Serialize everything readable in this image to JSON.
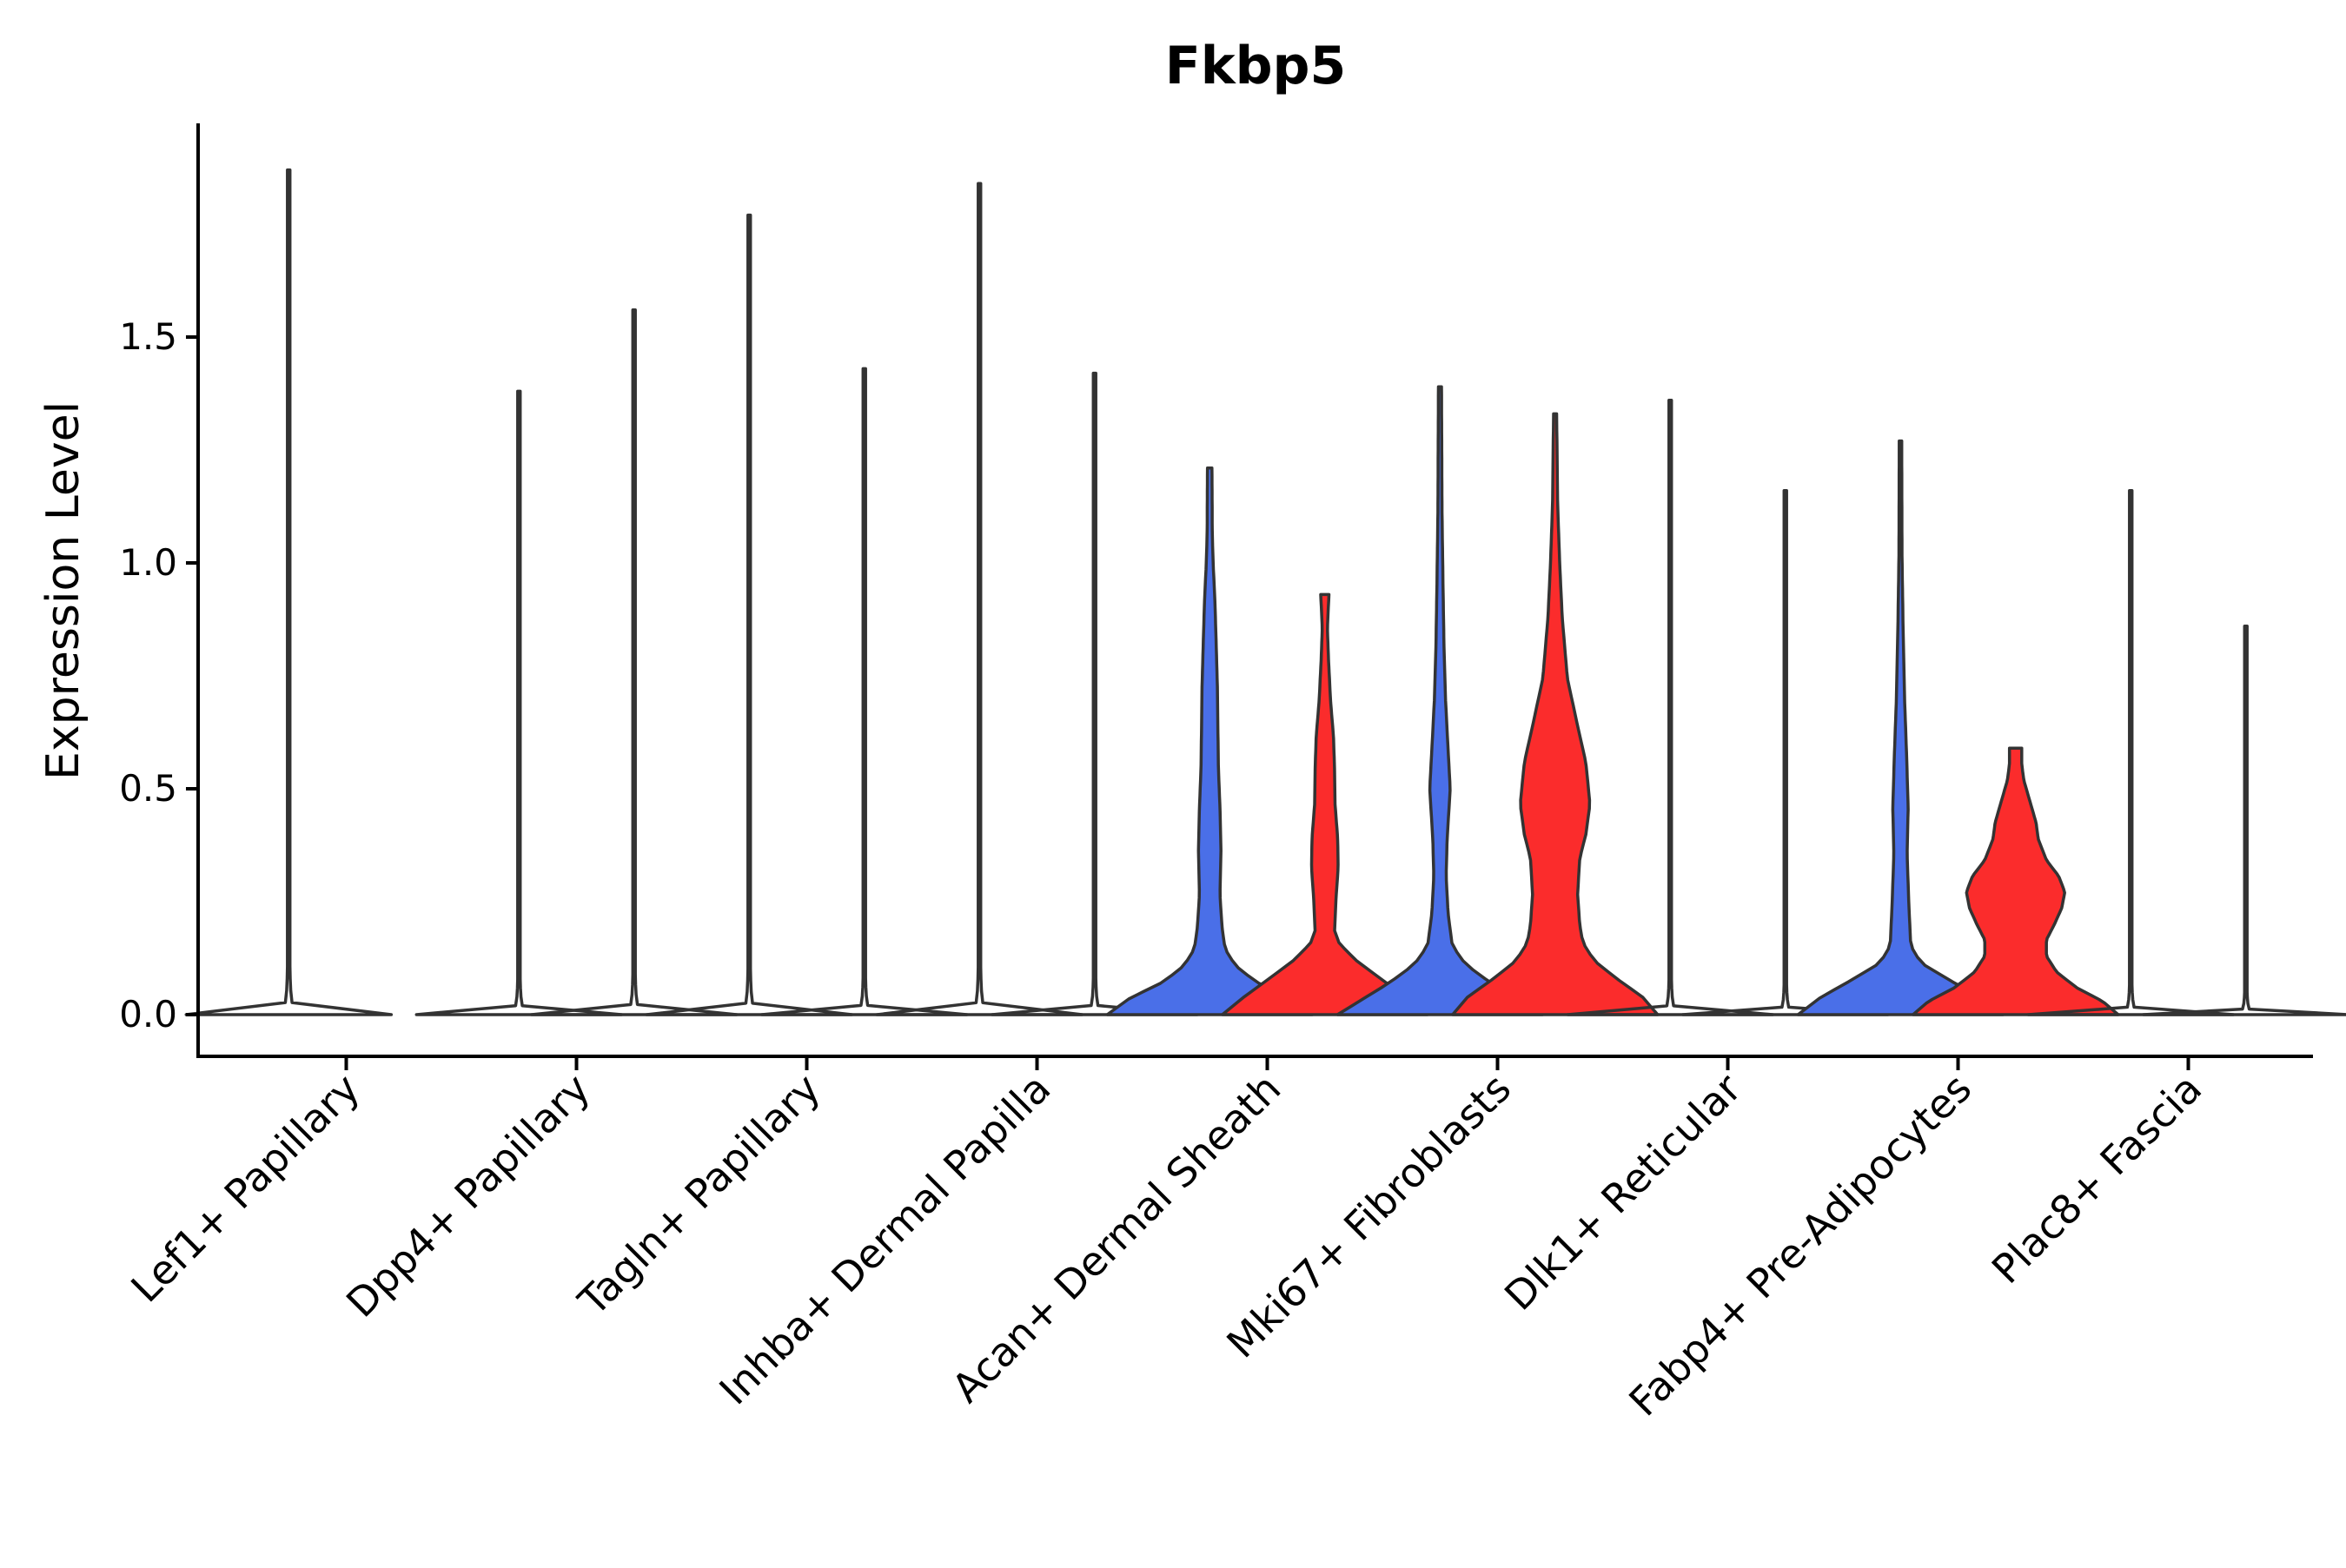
{
  "chart_data": {
    "type": "violin",
    "title": "Fkbp5",
    "xlabel": "",
    "ylabel": "Expression Level",
    "ylim": [
      -0.095,
      1.97
    ],
    "yticks": [
      0.0,
      0.5,
      1.0,
      1.5
    ],
    "ytick_labels": [
      "0.0",
      "0.5",
      "1.0",
      "1.5"
    ],
    "grid": false,
    "legend": "none",
    "colors": {
      "group_a": "#4a6fe8",
      "group_b": "#fb2c2c",
      "outline": "#333333"
    },
    "categories": [
      "Lef1+ Papillary",
      "Dpp4+ Papillary",
      "Tagln+ Papillary",
      "Inhba+ Dermal Papilla",
      "Acan+ Dermal Sheath",
      "Mki67+ Fibroblasts",
      "Dlk1+ Reticular",
      "Fabp4+ Pre-Adipocytes",
      "Plac8+ Fascia"
    ],
    "series": [
      {
        "name": "group_a",
        "max_values": [
          1.87,
          1.38,
          1.77,
          1.84,
          1.21,
          1.39,
          1.36,
          1.27,
          1.16
        ]
      },
      {
        "name": "group_b",
        "max_values": [
          null,
          1.56,
          1.43,
          1.42,
          0.93,
          1.33,
          1.16,
          0.59,
          0.86
        ]
      }
    ],
    "density_profiles": {
      "spike": [
        [
          0,
          1
        ],
        [
          0.004,
          0.14
        ],
        [
          0.015,
          0.025
        ],
        [
          0.05,
          0.012
        ],
        [
          1,
          0.012
        ]
      ],
      "acan_a": [
        [
          0,
          1
        ],
        [
          0.03,
          0.78
        ],
        [
          0.06,
          0.45
        ],
        [
          0.09,
          0.25
        ],
        [
          0.12,
          0.15
        ],
        [
          0.16,
          0.12
        ],
        [
          0.22,
          0.1
        ],
        [
          0.3,
          0.11
        ],
        [
          0.38,
          0.1
        ],
        [
          0.45,
          0.085
        ],
        [
          0.52,
          0.08
        ],
        [
          0.6,
          0.075
        ],
        [
          0.7,
          0.06
        ],
        [
          0.76,
          0.05
        ],
        [
          0.82,
          0.035
        ],
        [
          0.88,
          0.025
        ],
        [
          1,
          0.022
        ]
      ],
      "acan_b": [
        [
          0,
          1
        ],
        [
          0.04,
          0.8
        ],
        [
          0.09,
          0.52
        ],
        [
          0.13,
          0.3
        ],
        [
          0.17,
          0.14
        ],
        [
          0.2,
          0.095
        ],
        [
          0.28,
          0.11
        ],
        [
          0.35,
          0.13
        ],
        [
          0.42,
          0.125
        ],
        [
          0.5,
          0.1
        ],
        [
          0.58,
          0.095
        ],
        [
          0.66,
          0.085
        ],
        [
          0.75,
          0.055
        ],
        [
          0.85,
          0.035
        ],
        [
          0.92,
          0.025
        ],
        [
          1,
          0.04
        ]
      ],
      "mki_a": [
        [
          0,
          1
        ],
        [
          0.02,
          0.8
        ],
        [
          0.05,
          0.5
        ],
        [
          0.08,
          0.25
        ],
        [
          0.11,
          0.12
        ],
        [
          0.16,
          0.08
        ],
        [
          0.22,
          0.06
        ],
        [
          0.28,
          0.07
        ],
        [
          0.36,
          0.1
        ],
        [
          0.42,
          0.08
        ],
        [
          0.5,
          0.055
        ],
        [
          0.58,
          0.04
        ],
        [
          0.68,
          0.03
        ],
        [
          0.8,
          0.02
        ],
        [
          1,
          0.015
        ]
      ],
      "mki_b": [
        [
          0,
          1
        ],
        [
          0.03,
          0.85
        ],
        [
          0.06,
          0.6
        ],
        [
          0.09,
          0.38
        ],
        [
          0.12,
          0.27
        ],
        [
          0.15,
          0.24
        ],
        [
          0.2,
          0.22
        ],
        [
          0.26,
          0.24
        ],
        [
          0.3,
          0.3
        ],
        [
          0.35,
          0.34
        ],
        [
          0.42,
          0.3
        ],
        [
          0.48,
          0.22
        ],
        [
          0.56,
          0.12
        ],
        [
          0.66,
          0.07
        ],
        [
          0.75,
          0.045
        ],
        [
          0.85,
          0.025
        ],
        [
          1,
          0.015
        ]
      ],
      "fabp_a": [
        [
          0,
          1
        ],
        [
          0.03,
          0.78
        ],
        [
          0.06,
          0.48
        ],
        [
          0.09,
          0.2
        ],
        [
          0.12,
          0.1
        ],
        [
          0.2,
          0.08
        ],
        [
          0.28,
          0.065
        ],
        [
          0.36,
          0.075
        ],
        [
          0.45,
          0.06
        ],
        [
          0.55,
          0.04
        ],
        [
          0.68,
          0.025
        ],
        [
          0.8,
          0.015
        ],
        [
          1,
          0.012
        ]
      ],
      "fabp_b": [
        [
          0,
          1
        ],
        [
          0.05,
          0.85
        ],
        [
          0.1,
          0.6
        ],
        [
          0.16,
          0.4
        ],
        [
          0.22,
          0.3
        ],
        [
          0.28,
          0.3
        ],
        [
          0.34,
          0.38
        ],
        [
          0.4,
          0.45
        ],
        [
          0.46,
          0.48
        ],
        [
          0.52,
          0.42
        ],
        [
          0.58,
          0.3
        ],
        [
          0.66,
          0.22
        ],
        [
          0.72,
          0.2
        ],
        [
          0.8,
          0.14
        ],
        [
          0.88,
          0.08
        ],
        [
          0.94,
          0.06
        ],
        [
          1,
          0.06
        ]
      ]
    },
    "violin_shapes": [
      {
        "category": 0,
        "group": "group_a",
        "profile": "spike",
        "filled": false
      },
      {
        "category": 1,
        "group": "group_a",
        "profile": "spike",
        "filled": false
      },
      {
        "category": 1,
        "group": "group_b",
        "profile": "spike",
        "filled": false
      },
      {
        "category": 2,
        "group": "group_a",
        "profile": "spike",
        "filled": false
      },
      {
        "category": 2,
        "group": "group_b",
        "profile": "spike",
        "filled": false
      },
      {
        "category": 3,
        "group": "group_a",
        "profile": "spike",
        "filled": false
      },
      {
        "category": 3,
        "group": "group_b",
        "profile": "spike",
        "filled": false
      },
      {
        "category": 4,
        "group": "group_a",
        "profile": "acan_a",
        "filled": true
      },
      {
        "category": 4,
        "group": "group_b",
        "profile": "acan_b",
        "filled": true
      },
      {
        "category": 5,
        "group": "group_a",
        "profile": "mki_a",
        "filled": true
      },
      {
        "category": 5,
        "group": "group_b",
        "profile": "mki_b",
        "filled": true
      },
      {
        "category": 6,
        "group": "group_a",
        "profile": "spike",
        "filled": false
      },
      {
        "category": 6,
        "group": "group_b",
        "profile": "spike",
        "filled": false
      },
      {
        "category": 7,
        "group": "group_a",
        "profile": "fabp_a",
        "filled": true
      },
      {
        "category": 7,
        "group": "group_b",
        "profile": "fabp_b",
        "filled": true
      },
      {
        "category": 8,
        "group": "group_a",
        "profile": "spike",
        "filled": false
      },
      {
        "category": 8,
        "group": "group_b",
        "profile": "spike",
        "filled": false
      }
    ]
  }
}
